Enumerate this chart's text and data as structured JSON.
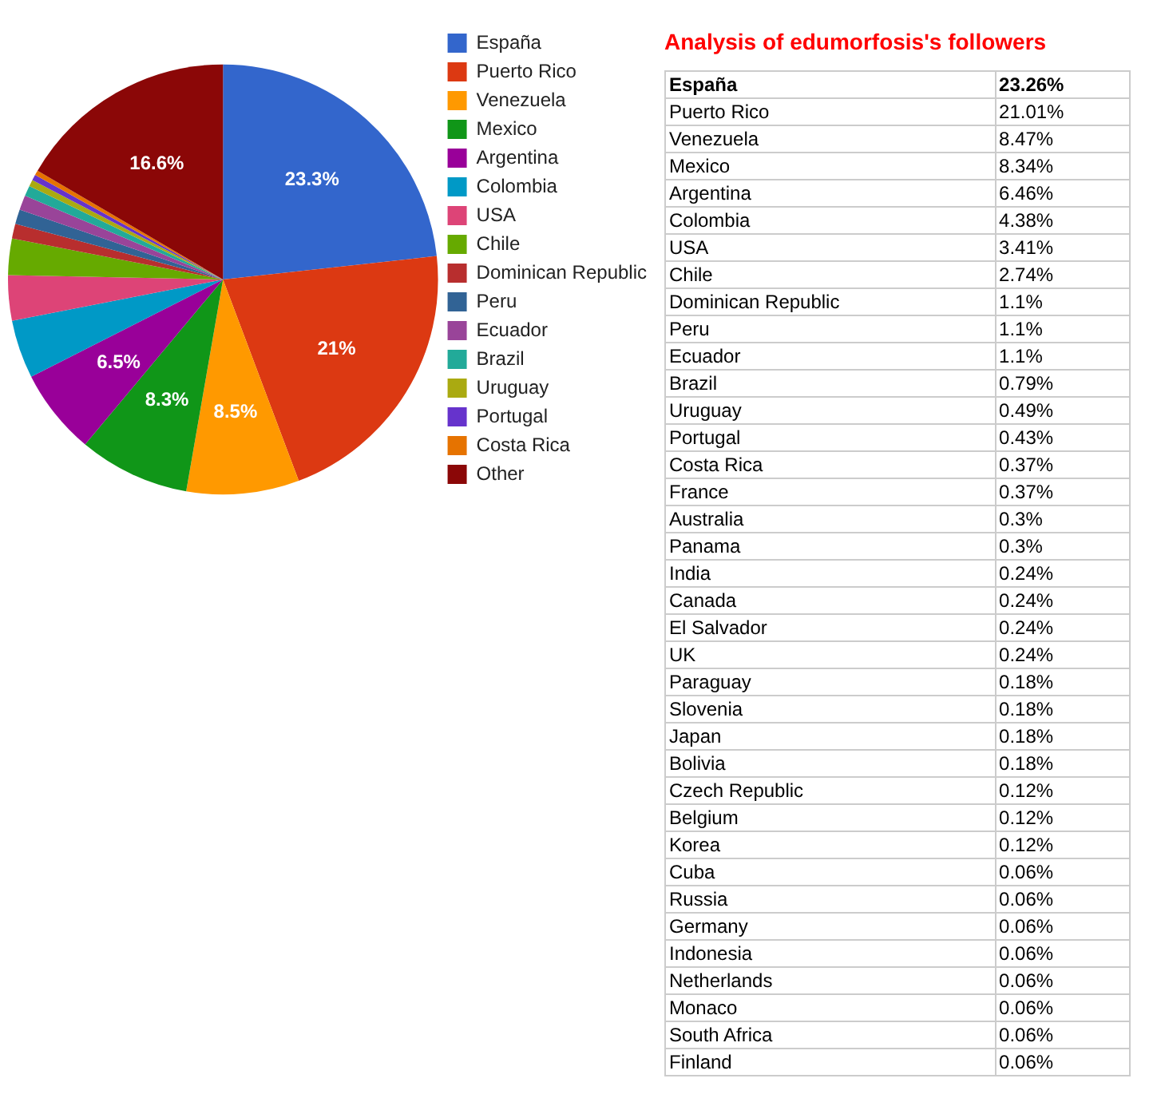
{
  "chart_data": [
    {
      "type": "pie",
      "categories": [
        "España",
        "Puerto Rico",
        "Venezuela",
        "Mexico",
        "Argentina",
        "Colombia",
        "USA",
        "Chile",
        "Dominican Republic",
        "Peru",
        "Ecuador",
        "Brazil",
        "Uruguay",
        "Portugal",
        "Costa Rica",
        "Other"
      ],
      "values": [
        23.26,
        21.01,
        8.47,
        8.34,
        6.46,
        4.38,
        3.41,
        2.74,
        1.1,
        1.1,
        1.1,
        0.79,
        0.49,
        0.43,
        0.37,
        16.55
      ],
      "colors": [
        "#3366cc",
        "#dc3912",
        "#ff9900",
        "#109618",
        "#990099",
        "#0099c6",
        "#dd4477",
        "#66aa00",
        "#b82e2e",
        "#316395",
        "#994499",
        "#22aa99",
        "#aaaa11",
        "#6633cc",
        "#e67300",
        "#8b0707"
      ],
      "value_labels": [
        "23.3%",
        "21%",
        "8.5%",
        "8.3%",
        "6.5%",
        null,
        null,
        null,
        null,
        null,
        null,
        null,
        null,
        null,
        null,
        "16.6%"
      ],
      "legend": "right"
    },
    {
      "type": "other",
      "title": "Analysis of edumorfosis's followers",
      "categories": [
        "España",
        "Puerto Rico",
        "Venezuela",
        "Mexico",
        "Argentina",
        "Colombia",
        "USA",
        "Chile",
        "Dominican Republic",
        "Peru",
        "Ecuador",
        "Brazil",
        "Uruguay",
        "Portugal",
        "Costa Rica",
        "France",
        "Australia",
        "Panama",
        "India",
        "Canada",
        "El Salvador",
        "UK",
        "Paraguay",
        "Slovenia",
        "Japan",
        "Bolivia",
        "Czech Republic",
        "Belgium",
        "Korea",
        "Cuba",
        "Russia",
        "Germany",
        "Indonesia",
        "Netherlands",
        "Monaco",
        "South Africa",
        "Finland"
      ],
      "value_labels": [
        "23.26%",
        "21.01%",
        "8.47%",
        "8.34%",
        "6.46%",
        "4.38%",
        "3.41%",
        "2.74%",
        "1.1%",
        "1.1%",
        "1.1%",
        "0.79%",
        "0.49%",
        "0.43%",
        "0.37%",
        "0.37%",
        "0.3%",
        "0.3%",
        "0.24%",
        "0.24%",
        "0.24%",
        "0.24%",
        "0.18%",
        "0.18%",
        "0.18%",
        "0.18%",
        "0.12%",
        "0.12%",
        "0.12%",
        "0.06%",
        "0.06%",
        "0.06%",
        "0.06%",
        "0.06%",
        "0.06%",
        "0.06%",
        "0.06%"
      ]
    }
  ]
}
